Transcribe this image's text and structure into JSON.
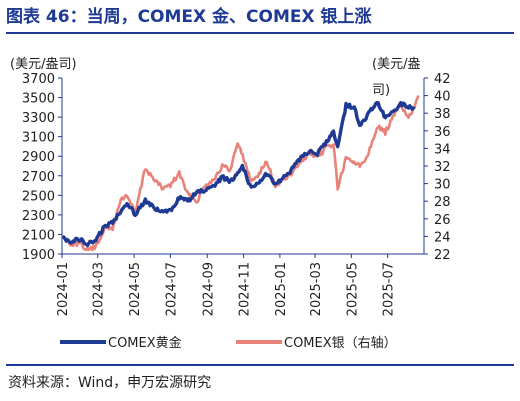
{
  "title": "图表 46：当周，COMEX 金、COMEX 银上涨",
  "source": "资料来源：Wind，申万宏源研究",
  "chart_data": {
    "type": "line",
    "y_left_unit": "(美元/盎司)",
    "y_right_unit_line1": "(美元/盎",
    "y_right_unit_line2": "司)",
    "y_left_ticks": [
      "3700",
      "3500",
      "3300",
      "3100",
      "2900",
      "2700",
      "2500",
      "2300",
      "2100",
      "1900"
    ],
    "y_right_ticks": [
      "42",
      "40",
      "38",
      "36",
      "34",
      "32",
      "30",
      "28",
      "26",
      "24",
      "22"
    ],
    "ylim_left": [
      1900,
      3700
    ],
    "ylim_right": [
      22,
      42
    ],
    "x_ticks": [
      "2024-01",
      "2024-03",
      "2024-05",
      "2024-07",
      "2024-09",
      "2024-11",
      "2025-01",
      "2025-03",
      "2025-05",
      "2025-07"
    ],
    "grid": false,
    "legend_position": "bottom",
    "colors": {
      "gold": "#1f3a93",
      "silver": "#e8837a",
      "axis": "#1f3a93"
    },
    "series": [
      {
        "name": "COMEX黄金",
        "axis": "left",
        "points": [
          [
            "2024-01-02",
            2070
          ],
          [
            "2024-01-16",
            2030
          ],
          [
            "2024-01-30",
            2050
          ],
          [
            "2024-02-13",
            2000
          ],
          [
            "2024-02-27",
            2040
          ],
          [
            "2024-03-12",
            2180
          ],
          [
            "2024-03-26",
            2220
          ],
          [
            "2024-04-09",
            2350
          ],
          [
            "2024-04-19",
            2420
          ],
          [
            "2024-05-03",
            2310
          ],
          [
            "2024-05-20",
            2450
          ],
          [
            "2024-06-03",
            2370
          ],
          [
            "2024-06-17",
            2330
          ],
          [
            "2024-07-01",
            2340
          ],
          [
            "2024-07-16",
            2480
          ],
          [
            "2024-07-30",
            2440
          ],
          [
            "2024-08-15",
            2530
          ],
          [
            "2024-08-28",
            2550
          ],
          [
            "2024-09-12",
            2580
          ],
          [
            "2024-09-26",
            2690
          ],
          [
            "2024-10-10",
            2640
          ],
          [
            "2024-10-30",
            2800
          ],
          [
            "2024-11-14",
            2570
          ],
          [
            "2024-11-25",
            2630
          ],
          [
            "2024-12-10",
            2720
          ],
          [
            "2024-12-24",
            2620
          ],
          [
            "2025-01-08",
            2680
          ],
          [
            "2025-01-22",
            2770
          ],
          [
            "2025-02-05",
            2880
          ],
          [
            "2025-02-20",
            2960
          ],
          [
            "2025-03-05",
            2920
          ],
          [
            "2025-03-20",
            3050
          ],
          [
            "2025-04-01",
            3150
          ],
          [
            "2025-04-08",
            3000
          ],
          [
            "2025-04-22",
            3420
          ],
          [
            "2025-05-06",
            3400
          ],
          [
            "2025-05-15",
            3200
          ],
          [
            "2025-05-28",
            3320
          ],
          [
            "2025-06-13",
            3450
          ],
          [
            "2025-06-27",
            3290
          ],
          [
            "2025-07-10",
            3350
          ],
          [
            "2025-07-23",
            3440
          ],
          [
            "2025-08-05",
            3400
          ],
          [
            "2025-08-15",
            3380
          ]
        ]
      },
      {
        "name": "COMEX银（右轴）",
        "axis": "right",
        "points": [
          [
            "2024-01-02",
            24.0
          ],
          [
            "2024-01-16",
            23.2
          ],
          [
            "2024-01-30",
            23.2
          ],
          [
            "2024-02-13",
            22.5
          ],
          [
            "2024-02-27",
            22.8
          ],
          [
            "2024-03-12",
            24.9
          ],
          [
            "2024-03-26",
            24.9
          ],
          [
            "2024-04-09",
            28.2
          ],
          [
            "2024-04-19",
            28.7
          ],
          [
            "2024-05-03",
            26.6
          ],
          [
            "2024-05-20",
            31.8
          ],
          [
            "2024-06-03",
            30.5
          ],
          [
            "2024-06-17",
            29.5
          ],
          [
            "2024-07-01",
            29.8
          ],
          [
            "2024-07-16",
            31.2
          ],
          [
            "2024-07-30",
            28.8
          ],
          [
            "2024-08-15",
            28.0
          ],
          [
            "2024-08-28",
            29.8
          ],
          [
            "2024-09-12",
            30.5
          ],
          [
            "2024-09-26",
            32.0
          ],
          [
            "2024-10-10",
            31.5
          ],
          [
            "2024-10-22",
            34.8
          ],
          [
            "2024-11-14",
            30.2
          ],
          [
            "2024-11-25",
            31.0
          ],
          [
            "2024-12-10",
            32.5
          ],
          [
            "2024-12-24",
            29.8
          ],
          [
            "2025-01-08",
            30.5
          ],
          [
            "2025-01-22",
            31.2
          ],
          [
            "2025-02-05",
            32.5
          ],
          [
            "2025-02-20",
            33.5
          ],
          [
            "2025-03-05",
            32.8
          ],
          [
            "2025-03-20",
            34.2
          ],
          [
            "2025-04-01",
            34.5
          ],
          [
            "2025-04-08",
            29.5
          ],
          [
            "2025-04-22",
            32.8
          ],
          [
            "2025-05-06",
            32.5
          ],
          [
            "2025-05-15",
            32.0
          ],
          [
            "2025-05-28",
            33.2
          ],
          [
            "2025-06-13",
            36.5
          ],
          [
            "2025-06-27",
            35.8
          ],
          [
            "2025-07-10",
            37.5
          ],
          [
            "2025-07-23",
            39.0
          ],
          [
            "2025-08-05",
            37.5
          ],
          [
            "2025-08-15",
            38.5
          ],
          [
            "2025-08-22",
            40.0
          ]
        ]
      }
    ]
  }
}
